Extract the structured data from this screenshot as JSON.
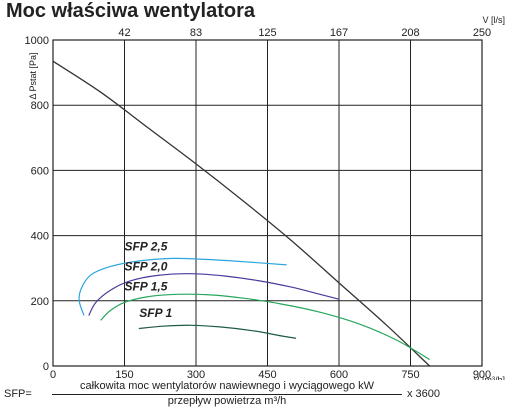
{
  "title": "Moc właściwa wentylatora",
  "chart_data": {
    "type": "line",
    "title": "Moc właściwa wentylatora",
    "xlabel": "V [m³/h]",
    "x2label": "V [l/s]",
    "ylabel": "Δ Pstat [Pa]",
    "xlim": [
      0,
      900
    ],
    "ylim": [
      0,
      1000
    ],
    "x_ticks": [
      0,
      150,
      300,
      450,
      600,
      750,
      900
    ],
    "x_tick_labels": [
      "0",
      "150",
      "300",
      "450",
      "600",
      "750",
      "900"
    ],
    "x2_ticks": [
      150,
      300,
      450,
      600,
      750,
      900
    ],
    "x2_tick_labels": [
      "42",
      "83",
      "125",
      "167",
      "208",
      "250"
    ],
    "y_ticks": [
      0,
      200,
      400,
      600,
      800,
      1000
    ],
    "y_tick_labels": [
      "0",
      "200",
      "400",
      "600",
      "800",
      "1000"
    ],
    "grid": true,
    "series": [
      {
        "name": "characteristic",
        "color": "#333333",
        "x": [
          0,
          100,
          200,
          300,
          400,
          500,
          600,
          700,
          790
        ],
        "y": [
          935,
          840,
          730,
          620,
          505,
          385,
          255,
          125,
          0
        ]
      },
      {
        "name": "SFP 2,5",
        "color": "#2ba6dc",
        "x": [
          65,
          55,
          60,
          80,
          120,
          180,
          250,
          320,
          400,
          490
        ],
        "y": [
          155,
          200,
          240,
          280,
          305,
          322,
          330,
          327,
          320,
          310
        ]
      },
      {
        "name": "SFP 2,0",
        "color": "#4b3a9c",
        "x": [
          75,
          90,
          120,
          160,
          220,
          290,
          360,
          430,
          500,
          560,
          600
        ],
        "y": [
          155,
          195,
          232,
          260,
          278,
          283,
          276,
          262,
          242,
          220,
          205
        ]
      },
      {
        "name": "SFP 1,5",
        "color": "#26a65b",
        "x": [
          100,
          120,
          150,
          200,
          260,
          330,
          400,
          480,
          560,
          640,
          720,
          790
        ],
        "y": [
          140,
          170,
          195,
          213,
          220,
          218,
          208,
          190,
          165,
          130,
          80,
          20
        ]
      },
      {
        "name": "SFP 1",
        "color": "#1e5c42",
        "x": [
          180,
          230,
          290,
          350,
          420,
          480,
          510
        ],
        "y": [
          115,
          122,
          125,
          120,
          108,
          92,
          85
        ]
      }
    ],
    "annotations": [
      {
        "text": "SFP 2,5",
        "x": 240,
        "y": 355
      },
      {
        "text": "SFP 2,0",
        "x": 240,
        "y": 293
      },
      {
        "text": "SFP 1,5",
        "x": 240,
        "y": 232
      },
      {
        "text": "SFP 1",
        "x": 250,
        "y": 150
      }
    ]
  },
  "formula": {
    "lhs": "SFP=",
    "numerator": "całkowita moc wentylatorów nawiewnego i wyciągowego kW",
    "denominator": "przepływ powietrza  m³/h",
    "rhs": "x 3600"
  }
}
